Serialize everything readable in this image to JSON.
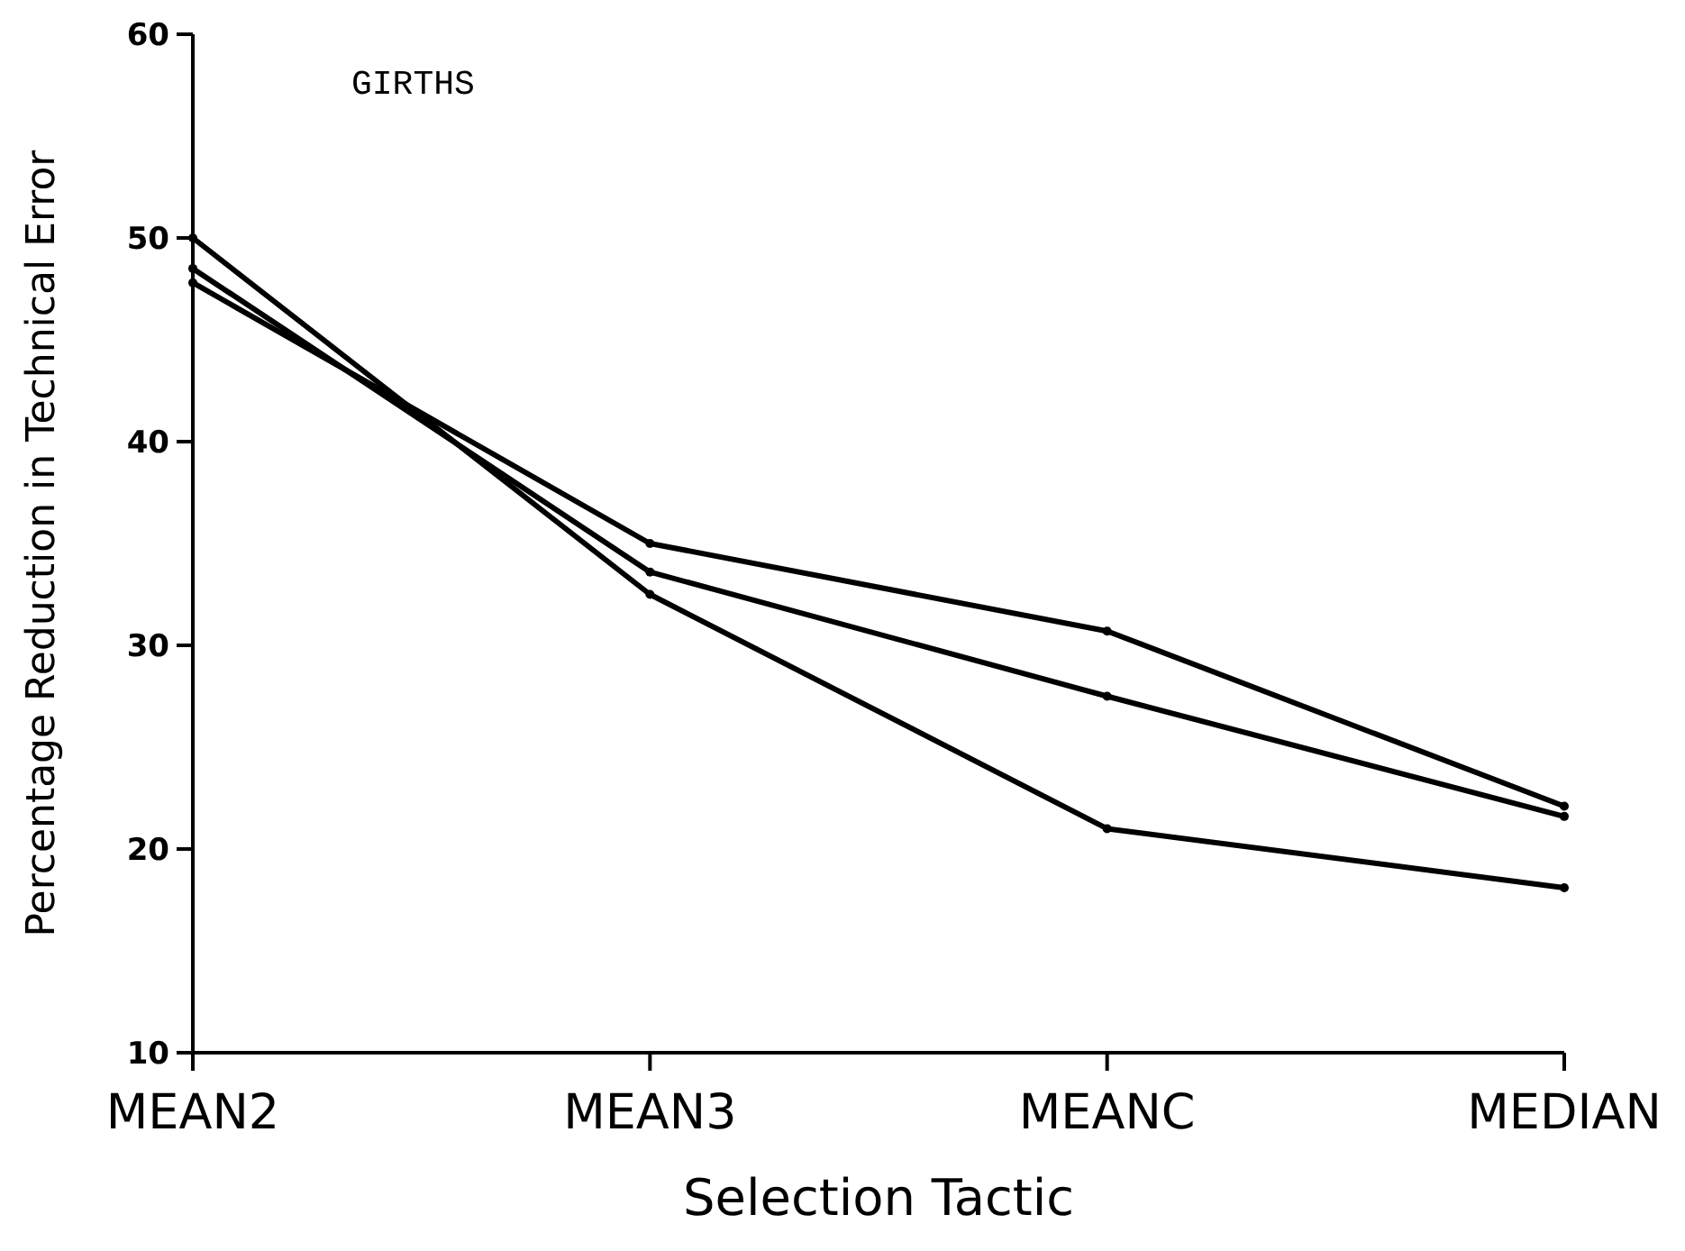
{
  "chart_data": {
    "type": "line",
    "xlabel": "Selection Tactic",
    "ylabel": "Percentage Reduction in Technical Error",
    "annotations": [
      "GIRTHS"
    ],
    "categories": [
      "MEAN2",
      "MEAN3",
      "MEANC",
      "MEDIAN"
    ],
    "series": [
      {
        "color": "#000000",
        "values": [
          50,
          32.5,
          21.0,
          18.1
        ]
      },
      {
        "color": "#000000",
        "values": [
          48.5,
          33.6,
          27.5,
          21.6
        ]
      },
      {
        "color": "#000000",
        "values": [
          47.8,
          35.0,
          30.7,
          22.1
        ]
      }
    ],
    "ylim": [
      10,
      60
    ],
    "yticks": [
      10,
      20,
      30,
      40,
      50,
      60
    ],
    "grid": false,
    "marker": "circle",
    "line_style": "solid"
  }
}
